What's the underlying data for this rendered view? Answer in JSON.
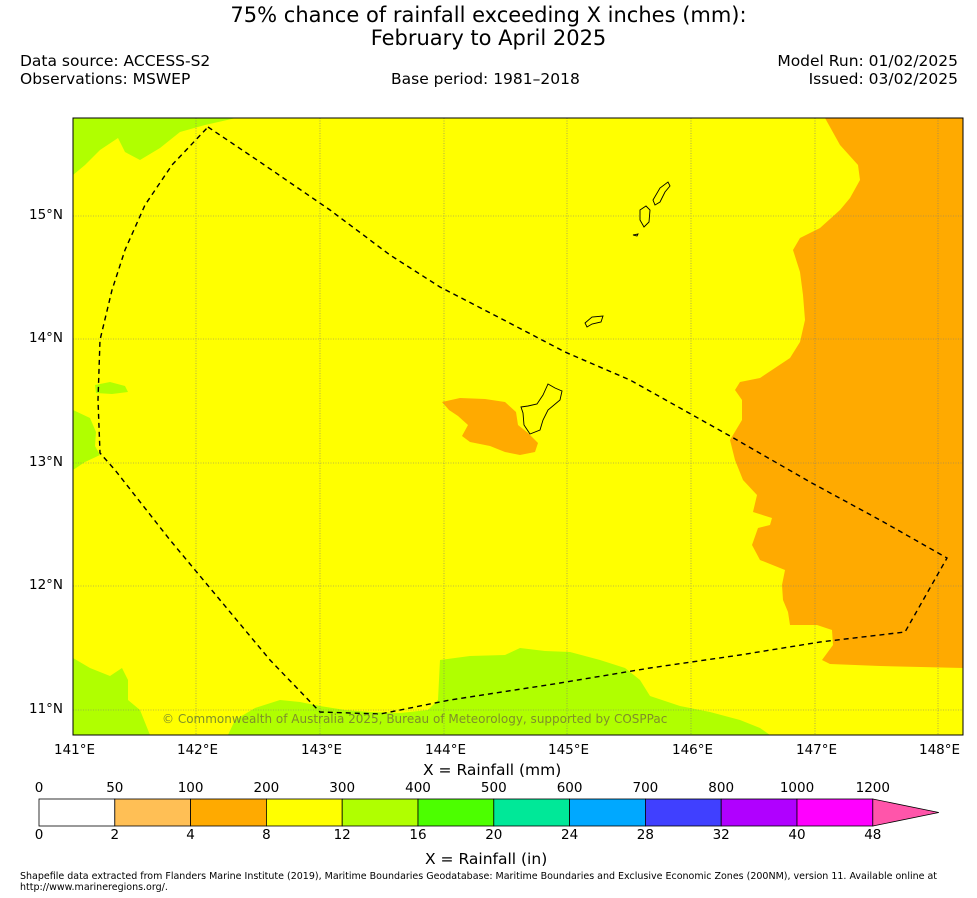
{
  "header": {
    "title_line1": "75% chance of rainfall exceeding X inches (mm):",
    "title_line2": "February to April 2025",
    "data_source": "Data source: ACCESS-S2",
    "observations": "Observations: MSWEP",
    "base_period": "Base period: 1981–2018",
    "model_run": "Model Run: 01/02/2025",
    "issued": "Issued: 03/02/2025"
  },
  "map": {
    "lat_ticks": [
      "15°N",
      "14°N",
      "13°N",
      "12°N",
      "11°N"
    ],
    "lon_ticks": [
      "141°E",
      "142°E",
      "143°E",
      "144°E",
      "145°E",
      "146°E",
      "147°E",
      "148°E"
    ],
    "x_axis_label": "X = Rainfall (mm)",
    "copyright": "© Commonwealth of Australia 2025, Bureau of Meteorology, supported by COSPPac",
    "colors": {
      "yellow": "#ffff00",
      "lime": "#b0ff00",
      "orange": "#ffaa00"
    }
  },
  "colorbar": {
    "mm_labels": [
      "0",
      "50",
      "100",
      "200",
      "300",
      "400",
      "500",
      "600",
      "700",
      "800",
      "1000",
      "1200"
    ],
    "in_labels": [
      "0",
      "2",
      "4",
      "8",
      "12",
      "16",
      "20",
      "24",
      "28",
      "32",
      "40",
      "48"
    ],
    "colors": [
      "#ffffff",
      "#ffbf55",
      "#ffaa00",
      "#ffff00",
      "#b0ff00",
      "#4cff00",
      "#00e898",
      "#00a8ff",
      "#4040ff",
      "#b000ff",
      "#ff00ff"
    ],
    "extend_color": "#ff55aa",
    "label": "X = Rainfall (in)"
  },
  "footer": {
    "line1": "Shapefile data extracted from Flanders Marine Institute (2019), Maritime Boundaries Geodatabase: Maritime Boundaries and Exclusive Economic Zones (200NM), version 11. Available online at",
    "line2": "http://www.marineregions.org/."
  }
}
